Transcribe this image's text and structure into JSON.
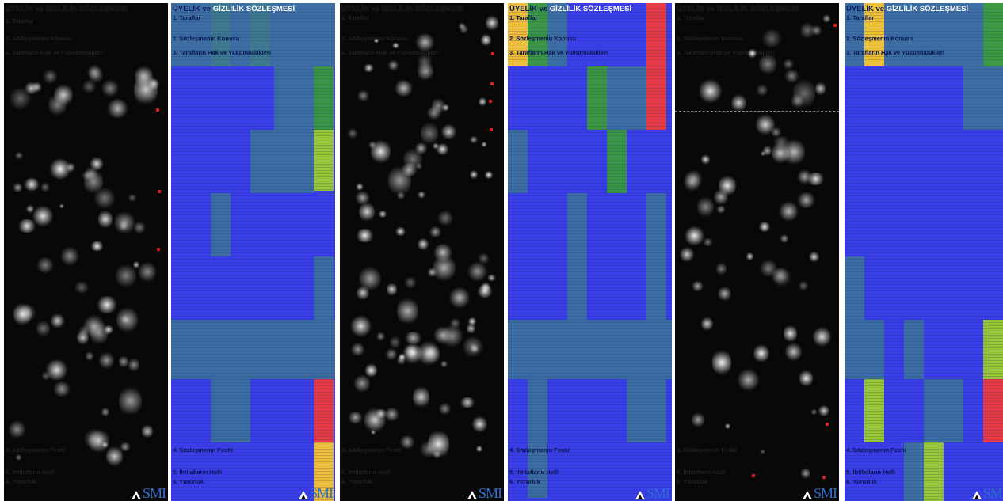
{
  "document": {
    "title_part1": "ÜYELİK ve ",
    "title_part2": "GİZLİLİK SÖZLEŞMESİ",
    "sections": [
      "1. Taraflar",
      "2. Sözleşmenin Konusu",
      "3. Tarafların Hak ve Yükümlülükleri",
      "4. Sözleşmenin Feshi",
      "5. İhtilafların Halli",
      "6. Yürürlük"
    ]
  },
  "logo_text": "SMI",
  "colors": {
    "heat_bg": "#080808",
    "grid_base": "#3a3ee8",
    "teal": "#3d7f8c",
    "green": "#3c9a3c",
    "lime": "#9ccc2e",
    "yellow": "#f5c531",
    "red": "#f03c3c",
    "brand_blue": "#2a6fd0"
  }
}
